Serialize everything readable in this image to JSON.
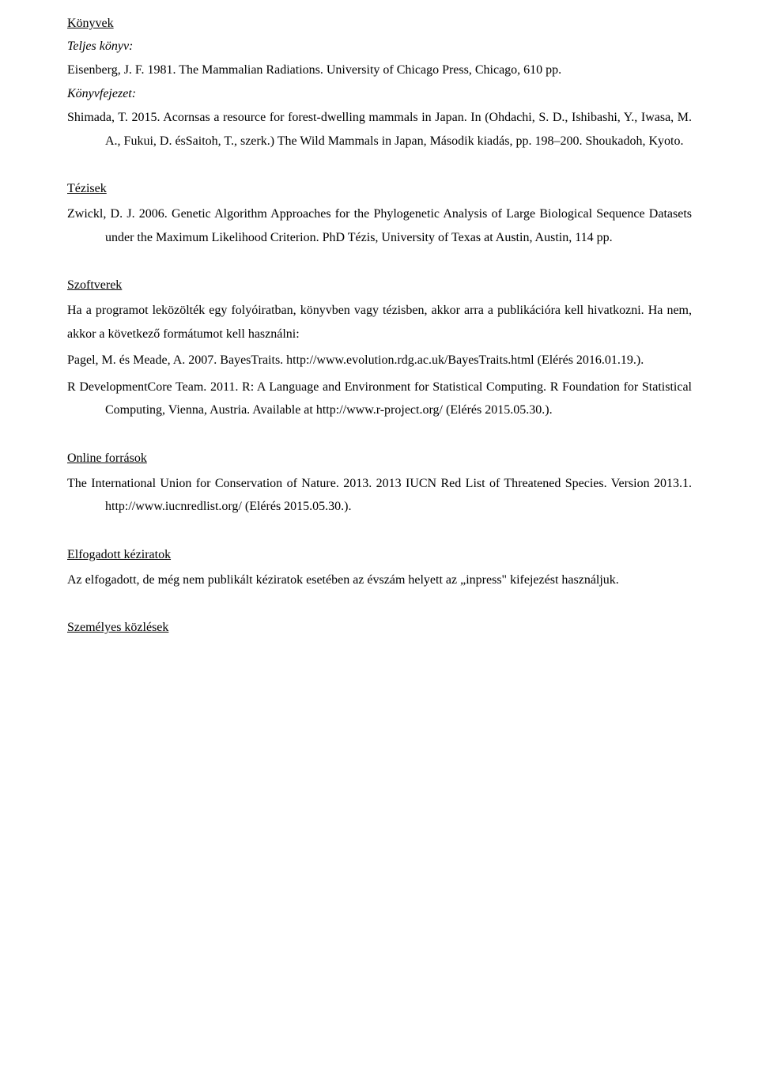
{
  "konyvek": {
    "heading": "Könyvek",
    "teljes_label": "Teljes könyv:",
    "teljes_entry": "Eisenberg, J. F. 1981. The Mammalian Radiations. University of Chicago Press, Chicago, 610 pp.",
    "fejezet_label": "Könyvfejezet:",
    "fejezet_entry": "Shimada, T. 2015. Acornsas a resource for forest-dwelling mammals in Japan. In (Ohdachi, S. D., Ishibashi, Y., Iwasa, M. A., Fukui, D. ésSaitoh, T., szerk.) The Wild Mammals in Japan, Második kiadás, pp. 198–200. Shoukadoh, Kyoto."
  },
  "tezisek": {
    "heading": "Tézisek",
    "entry": "Zwickl, D. J. 2006. Genetic Algorithm Approaches for the Phylogenetic Analysis of Large Biological Sequence Datasets under the Maximum Likelihood Criterion. PhD Tézis, University of Texas at Austin, Austin, 114 pp."
  },
  "szoftverek": {
    "heading": "Szoftverek",
    "body": "Ha a programot leközölték egy folyóiratban, könyvben vagy tézisben, akkor arra a publikációra kell hivatkozni. Ha nem, akkor a következő formátumot kell használni:",
    "entry1": "Pagel, M. és Meade, A. 2007. BayesTraits. http://www.evolution.rdg.ac.uk/BayesTraits.html (Elérés 2016.01.19.).",
    "entry2": "R DevelopmentCore Team. 2011. R: A Language and Environment for Statistical Computing. R Foundation for Statistical Computing, Vienna, Austria. Available at http://www.r-project.org/ (Elérés 2015.05.30.)."
  },
  "online": {
    "heading": "Online források",
    "entry": "The International Union for Conservation of Nature. 2013. 2013 IUCN Red List of Threatened Species. Version 2013.1. http://www.iucnredlist.org/ (Elérés 2015.05.30.)."
  },
  "elfogadott": {
    "heading": "Elfogadott kéziratok",
    "body": "Az elfogadott, de még nem publikált kéziratok esetében az évszám helyett az „inpress\" kifejezést használjuk."
  },
  "szemelyes": {
    "heading": "Személyes közlések"
  }
}
